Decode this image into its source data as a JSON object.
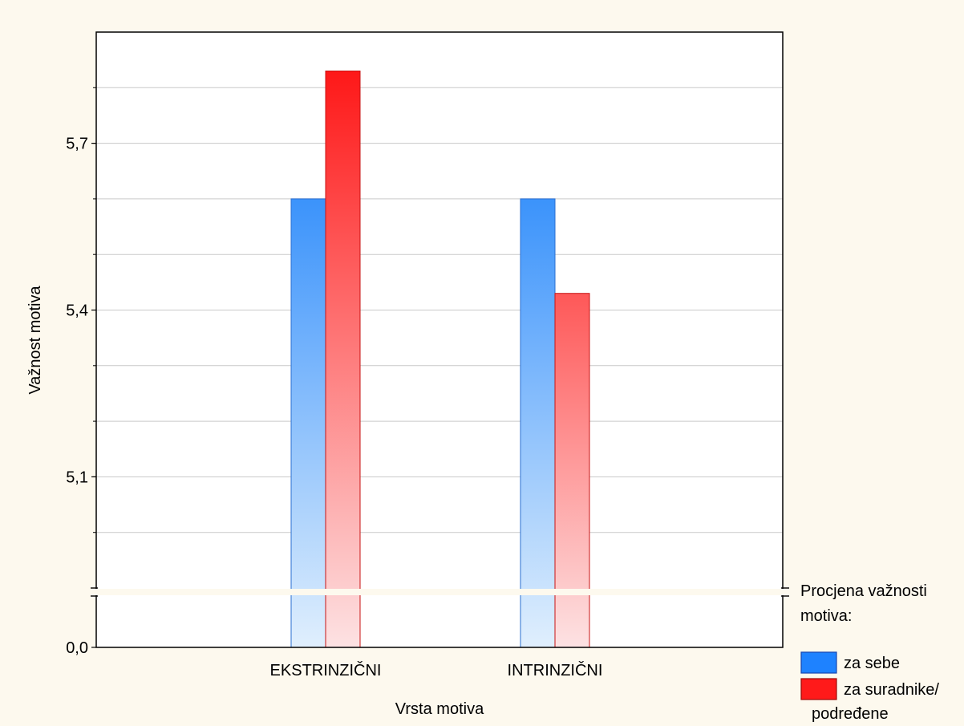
{
  "chart_data": {
    "type": "bar",
    "title": "",
    "xlabel": "Vrsta motiva",
    "ylabel": "Važnost motiva",
    "categories": [
      "EKSTRINZIČNI",
      "INTRINZIČNI"
    ],
    "series": [
      {
        "name": "za sebe",
        "values": [
          5.6,
          5.6
        ],
        "color": "#1e82ff"
      },
      {
        "name": "za suradnike/podređene",
        "values": [
          5.83,
          5.43
        ],
        "color": "#ff1a1a"
      }
    ],
    "legend": {
      "title_lines": [
        "Procjena važnosti",
        "motiva:"
      ],
      "entries": [
        {
          "label_lines": [
            "za sebe"
          ]
        },
        {
          "label_lines": [
            "za suradnike/",
            "podređene"
          ]
        }
      ],
      "placement": "bottom-right, outside plot"
    },
    "y_axis": {
      "scale": "broken",
      "break_between": [
        0.0,
        4.9
      ],
      "ylim_lower_segment": [
        0.0,
        0.05
      ],
      "ylim_upper_segment": [
        4.9,
        5.9
      ],
      "tick_labels": [
        "0,0",
        "5,1",
        "5,4",
        "5,7"
      ],
      "tick_values": [
        0.0,
        5.1,
        5.4,
        5.7
      ],
      "gridlines_at": [
        5.0,
        5.1,
        5.2,
        5.3,
        5.4,
        5.5,
        5.6,
        5.7,
        5.8
      ]
    },
    "grid": true
  }
}
